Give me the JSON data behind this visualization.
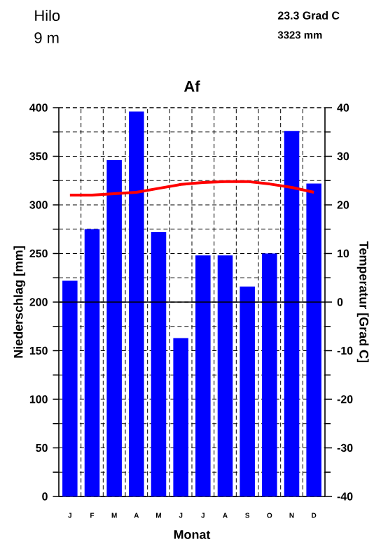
{
  "chart_data": {
    "type": "bar",
    "title": "Af",
    "xlabel": "Monat",
    "ylabel": "Niederschlag [mm]",
    "y2label": "Temperatur [Grad C]",
    "annotations": [
      "Hilo",
      "9 m",
      "23.3 Grad C",
      "3323 mm"
    ],
    "categories": [
      "J",
      "F",
      "M",
      "A",
      "M",
      "J",
      "J",
      "A",
      "S",
      "O",
      "N",
      "D"
    ],
    "series": [
      {
        "type": "bar",
        "color": "#0000ff",
        "values": [
          222,
          275,
          346,
          396,
          272,
          163,
          248,
          248,
          216,
          250,
          376,
          322
        ]
      },
      {
        "type": "line",
        "axis": "y2",
        "color": "#ff0000",
        "values": [
          22.0,
          22.0,
          22.3,
          22.6,
          23.4,
          24.2,
          24.6,
          24.8,
          24.8,
          24.3,
          23.6,
          22.6
        ]
      }
    ],
    "ylim": [
      0,
      400
    ],
    "yticks": [
      0,
      {
        "value": 25,
        "label": null
      },
      50,
      {
        "value": 75,
        "label": null
      },
      100,
      {
        "value": 125,
        "label": null
      },
      150,
      {
        "value": 175,
        "label": null
      },
      200,
      {
        "value": 225,
        "label": null
      },
      250,
      {
        "value": 275,
        "label": null
      },
      300,
      {
        "value": 325,
        "label": null
      },
      350,
      {
        "value": 375,
        "label": null
      },
      400
    ],
    "y2lim": [
      -40,
      40
    ],
    "y2ticks": [
      -40,
      -30,
      -20,
      -10,
      0,
      10,
      20,
      30,
      40
    ],
    "ref_lines": [
      {
        "axis": "y2",
        "value": 0,
        "color": "#000000",
        "line_style": "solid"
      }
    ],
    "grid": true,
    "marker": "none",
    "line_style": "solid"
  }
}
